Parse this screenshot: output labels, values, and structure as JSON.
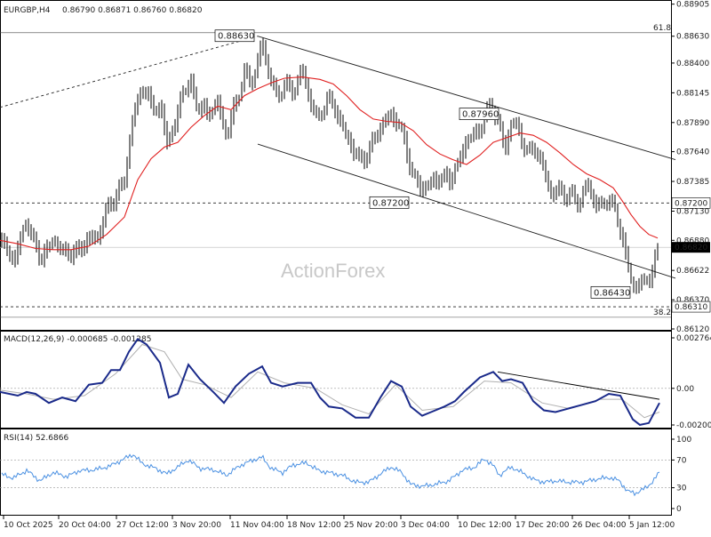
{
  "header": {
    "symbol": "EURGBP,H4",
    "ohlc": "0.86790 0.86871 0.86760 0.86820"
  },
  "watermark": "ActionForex",
  "chart_data": [
    {
      "type": "candlestick",
      "title": "EURGBP,H4 0.86790 0.86871 0.86760 0.86820",
      "ylim": [
        0.8612,
        0.8891
      ],
      "y_ticks": [
        "0.88905",
        "0.88630",
        "0.88400",
        "0.88145",
        "0.87890",
        "0.87640",
        "0.87385",
        "0.87130",
        "0.86880",
        "0.86622",
        "0.86370",
        "0.86120"
      ],
      "x_ticks": [
        "10 Oct 2025",
        "20 Oct 04:00",
        "27 Oct 12:00",
        "3 Nov 20:00",
        "11 Nov 04:00",
        "18 Nov 12:00",
        "25 Nov 20:00",
        "3 Dec 04:00",
        "10 Dec 12:00",
        "17 Dec 20:00",
        "26 Dec 04:00",
        "5 Jan 12:00"
      ],
      "price_path": [
        [
          0,
          0.869
        ],
        [
          15,
          0.867
        ],
        [
          30,
          0.8705
        ],
        [
          45,
          0.8672
        ],
        [
          60,
          0.8688
        ],
        [
          75,
          0.8676
        ],
        [
          90,
          0.868
        ],
        [
          100,
          0.869
        ],
        [
          110,
          0.869
        ],
        [
          120,
          0.8715
        ],
        [
          130,
          0.8725
        ],
        [
          140,
          0.874
        ],
        [
          150,
          0.8795
        ],
        [
          160,
          0.882
        ],
        [
          170,
          0.8805
        ],
        [
          180,
          0.88
        ],
        [
          188,
          0.8775
        ],
        [
          197,
          0.8785
        ],
        [
          205,
          0.8818
        ],
        [
          215,
          0.882
        ],
        [
          225,
          0.88
        ],
        [
          235,
          0.8798
        ],
        [
          245,
          0.8805
        ],
        [
          255,
          0.8778
        ],
        [
          265,
          0.8805
        ],
        [
          275,
          0.883
        ],
        [
          285,
          0.8825
        ],
        [
          295,
          0.8858
        ],
        [
          303,
          0.883
        ],
        [
          312,
          0.881
        ],
        [
          320,
          0.8822
        ],
        [
          330,
          0.8815
        ],
        [
          340,
          0.8835
        ],
        [
          348,
          0.881
        ],
        [
          358,
          0.879
        ],
        [
          368,
          0.881
        ],
        [
          378,
          0.88
        ],
        [
          388,
          0.878
        ],
        [
          398,
          0.8765
        ],
        [
          408,
          0.8755
        ],
        [
          418,
          0.877
        ],
        [
          428,
          0.8785
        ],
        [
          438,
          0.8795
        ],
        [
          448,
          0.879
        ],
        [
          456,
          0.877
        ],
        [
          465,
          0.8742
        ],
        [
          475,
          0.8732
        ],
        [
          485,
          0.8737
        ],
        [
          495,
          0.8742
        ],
        [
          505,
          0.874
        ],
        [
          515,
          0.8752
        ],
        [
          525,
          0.8775
        ],
        [
          535,
          0.8778
        ],
        [
          545,
          0.8792
        ],
        [
          553,
          0.8805
        ],
        [
          560,
          0.879
        ],
        [
          568,
          0.8765
        ],
        [
          575,
          0.879
        ],
        [
          585,
          0.878
        ],
        [
          595,
          0.876
        ],
        [
          603,
          0.877
        ],
        [
          612,
          0.8745
        ],
        [
          622,
          0.8728
        ],
        [
          632,
          0.873
        ],
        [
          642,
          0.8725
        ],
        [
          652,
          0.8722
        ],
        [
          662,
          0.8735
        ],
        [
          670,
          0.872
        ],
        [
          678,
          0.8715
        ],
        [
          685,
          0.8728
        ],
        [
          692,
          0.871
        ],
        [
          700,
          0.8695
        ],
        [
          706,
          0.8665
        ],
        [
          712,
          0.8648
        ],
        [
          718,
          0.8652
        ],
        [
          725,
          0.865
        ],
        [
          732,
          0.866
        ],
        [
          737,
          0.867
        ],
        [
          742,
          0.868
        ]
      ],
      "sma_path": [
        [
          0,
          0.8688
        ],
        [
          20,
          0.8685
        ],
        [
          40,
          0.8681
        ],
        [
          60,
          0.868
        ],
        [
          80,
          0.868
        ],
        [
          100,
          0.8683
        ],
        [
          120,
          0.8693
        ],
        [
          140,
          0.8708
        ],
        [
          155,
          0.874
        ],
        [
          170,
          0.8758
        ],
        [
          185,
          0.8768
        ],
        [
          200,
          0.8772
        ],
        [
          215,
          0.8785
        ],
        [
          230,
          0.8795
        ],
        [
          245,
          0.8803
        ],
        [
          260,
          0.88
        ],
        [
          275,
          0.8812
        ],
        [
          290,
          0.8818
        ],
        [
          305,
          0.8823
        ],
        [
          320,
          0.8827
        ],
        [
          340,
          0.8828
        ],
        [
          360,
          0.8826
        ],
        [
          375,
          0.8822
        ],
        [
          390,
          0.8812
        ],
        [
          405,
          0.88
        ],
        [
          420,
          0.8792
        ],
        [
          435,
          0.879
        ],
        [
          450,
          0.8789
        ],
        [
          465,
          0.8782
        ],
        [
          480,
          0.877
        ],
        [
          495,
          0.8762
        ],
        [
          510,
          0.8757
        ],
        [
          525,
          0.8753
        ],
        [
          540,
          0.8761
        ],
        [
          555,
          0.8772
        ],
        [
          570,
          0.8776
        ],
        [
          585,
          0.878
        ],
        [
          600,
          0.8778
        ],
        [
          615,
          0.8772
        ],
        [
          630,
          0.8763
        ],
        [
          645,
          0.8753
        ],
        [
          660,
          0.8745
        ],
        [
          675,
          0.874
        ],
        [
          690,
          0.8733
        ],
        [
          700,
          0.8722
        ],
        [
          710,
          0.871
        ],
        [
          720,
          0.87
        ],
        [
          730,
          0.8693
        ],
        [
          740,
          0.869
        ]
      ],
      "annotations": {
        "channel_upper": [
          [
            290,
            0.8863
          ],
          [
            760,
            0.87572
          ]
        ],
        "channel_lower": [
          [
            290,
            0.87705
          ],
          [
            760,
            0.86555
          ]
        ],
        "prior_trend": [
          [
            0,
            0.8802
          ],
          [
            290,
            0.8863
          ]
        ],
        "fib_levels": [
          {
            "label": "61.8",
            "value": 0.8866
          },
          {
            "label": "38.2",
            "value": 0.8622
          }
        ],
        "hlines": [
          {
            "label": "0.87200",
            "value": 0.872
          },
          {
            "label": "0.86310",
            "value": 0.8631
          }
        ],
        "last_price": {
          "label": "0.86820",
          "value": 0.8682
        },
        "price_labels": [
          {
            "label": "0.88630",
            "x": 288,
            "value": 0.8863
          },
          {
            "label": "0.87960",
            "x": 563,
            "value": 0.8796
          },
          {
            "label": "0.87200",
            "x": 462,
            "value": 0.872
          },
          {
            "label": "0.86430",
            "x": 711,
            "value": 0.8643
          }
        ]
      }
    },
    {
      "type": "line",
      "title": "MACD(12,26,9) -0.000685 -0.001285",
      "ylim": [
        -0.002005,
        0.002764
      ],
      "y_ticks": [
        "0.002764",
        "0.00",
        "-0.002005"
      ],
      "macd_path": [
        [
          0,
          -0.0002
        ],
        [
          20,
          -0.0004
        ],
        [
          30,
          -0.0002
        ],
        [
          40,
          -0.0003
        ],
        [
          55,
          -0.0008
        ],
        [
          70,
          -0.0005
        ],
        [
          85,
          -0.0007
        ],
        [
          100,
          0.0002
        ],
        [
          115,
          0.0003
        ],
        [
          125,
          0.001
        ],
        [
          135,
          0.001
        ],
        [
          145,
          0.002
        ],
        [
          155,
          0.0027
        ],
        [
          165,
          0.0024
        ],
        [
          180,
          0.0014
        ],
        [
          190,
          -0.0005
        ],
        [
          200,
          -0.0003
        ],
        [
          212,
          0.0013
        ],
        [
          225,
          0.0005
        ],
        [
          240,
          -0.0002
        ],
        [
          252,
          -0.0008
        ],
        [
          265,
          0.0001
        ],
        [
          280,
          0.0008
        ],
        [
          295,
          0.0012
        ],
        [
          305,
          0.0003
        ],
        [
          318,
          0.0001
        ],
        [
          335,
          0.0003
        ],
        [
          350,
          0.0003
        ],
        [
          360,
          -0.0005
        ],
        [
          370,
          -0.001
        ],
        [
          385,
          -0.0011
        ],
        [
          400,
          -0.0016
        ],
        [
          415,
          -0.0016
        ],
        [
          428,
          -0.0005
        ],
        [
          440,
          0.0004
        ],
        [
          452,
          0.0001
        ],
        [
          462,
          -0.001
        ],
        [
          475,
          -0.0015
        ],
        [
          485,
          -0.0013
        ],
        [
          500,
          -0.001
        ],
        [
          512,
          -0.0007
        ],
        [
          522,
          -0.0002
        ],
        [
          540,
          0.0006
        ],
        [
          555,
          0.0009
        ],
        [
          565,
          0.0004
        ],
        [
          575,
          0.0005
        ],
        [
          588,
          0.0003
        ],
        [
          600,
          -0.0007
        ],
        [
          612,
          -0.0012
        ],
        [
          625,
          -0.0013
        ],
        [
          640,
          -0.0011
        ],
        [
          655,
          -0.0009
        ],
        [
          670,
          -0.0007
        ],
        [
          685,
          -0.0003
        ],
        [
          698,
          -0.0004
        ],
        [
          712,
          -0.0017
        ],
        [
          720,
          -0.002
        ],
        [
          730,
          -0.0019
        ],
        [
          742,
          -0.0008
        ]
      ],
      "signal_path": [
        [
          0,
          -0.0001
        ],
        [
          30,
          -0.0003
        ],
        [
          60,
          -0.0006
        ],
        [
          95,
          -0.0004
        ],
        [
          130,
          0.0008
        ],
        [
          160,
          0.0024
        ],
        [
          185,
          0.002
        ],
        [
          205,
          0.0005
        ],
        [
          230,
          0.0002
        ],
        [
          260,
          -0.0005
        ],
        [
          290,
          0.0009
        ],
        [
          320,
          0.0003
        ],
        [
          355,
          0.0
        ],
        [
          385,
          -0.0009
        ],
        [
          415,
          -0.0014
        ],
        [
          445,
          0.0002
        ],
        [
          475,
          -0.0012
        ],
        [
          510,
          -0.001
        ],
        [
          545,
          0.0004
        ],
        [
          575,
          0.0003
        ],
        [
          610,
          -0.0008
        ],
        [
          640,
          -0.0011
        ],
        [
          675,
          -0.0006
        ],
        [
          700,
          -0.0006
        ],
        [
          725,
          -0.0016
        ],
        [
          742,
          -0.0013
        ]
      ],
      "trendline": [
        [
          560,
          0.0009
        ],
        [
          742,
          -0.0006
        ]
      ]
    },
    {
      "type": "line",
      "title": "RSI(14) 52.6866",
      "ylim": [
        0,
        100
      ],
      "y_ticks": [
        "100",
        "70",
        "30",
        "0"
      ],
      "rsi_path": [
        [
          0,
          50
        ],
        [
          15,
          44
        ],
        [
          30,
          55
        ],
        [
          45,
          40
        ],
        [
          60,
          52
        ],
        [
          75,
          46
        ],
        [
          90,
          55
        ],
        [
          100,
          55
        ],
        [
          115,
          58
        ],
        [
          125,
          62
        ],
        [
          140,
          72
        ],
        [
          150,
          78
        ],
        [
          160,
          65
        ],
        [
          175,
          58
        ],
        [
          188,
          50
        ],
        [
          200,
          60
        ],
        [
          212,
          70
        ],
        [
          225,
          58
        ],
        [
          240,
          56
        ],
        [
          255,
          48
        ],
        [
          270,
          62
        ],
        [
          285,
          70
        ],
        [
          295,
          74
        ],
        [
          305,
          58
        ],
        [
          318,
          52
        ],
        [
          330,
          63
        ],
        [
          345,
          66
        ],
        [
          358,
          55
        ],
        [
          370,
          52
        ],
        [
          385,
          48
        ],
        [
          400,
          38
        ],
        [
          415,
          38
        ],
        [
          428,
          50
        ],
        [
          440,
          60
        ],
        [
          452,
          52
        ],
        [
          462,
          35
        ],
        [
          475,
          32
        ],
        [
          490,
          35
        ],
        [
          505,
          40
        ],
        [
          520,
          55
        ],
        [
          535,
          60
        ],
        [
          545,
          72
        ],
        [
          555,
          62
        ],
        [
          562,
          48
        ],
        [
          575,
          60
        ],
        [
          590,
          50
        ],
        [
          600,
          42
        ],
        [
          612,
          38
        ],
        [
          625,
          40
        ],
        [
          640,
          38
        ],
        [
          655,
          38
        ],
        [
          670,
          42
        ],
        [
          685,
          45
        ],
        [
          697,
          40
        ],
        [
          706,
          25
        ],
        [
          715,
          22
        ],
        [
          727,
          30
        ],
        [
          735,
          40
        ],
        [
          742,
          52
        ]
      ]
    }
  ]
}
